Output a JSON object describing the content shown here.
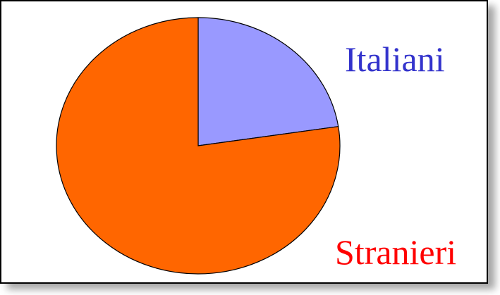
{
  "chart_data": {
    "type": "pie",
    "title": "",
    "slices": [
      {
        "label": "Italiani",
        "value": 22.6,
        "color": "#9999ff",
        "label_color": "#3333cc"
      },
      {
        "label": "Stranieri",
        "value": 77.4,
        "color": "#ff6600",
        "label_color": "#ff0000"
      }
    ],
    "legend": "right"
  }
}
